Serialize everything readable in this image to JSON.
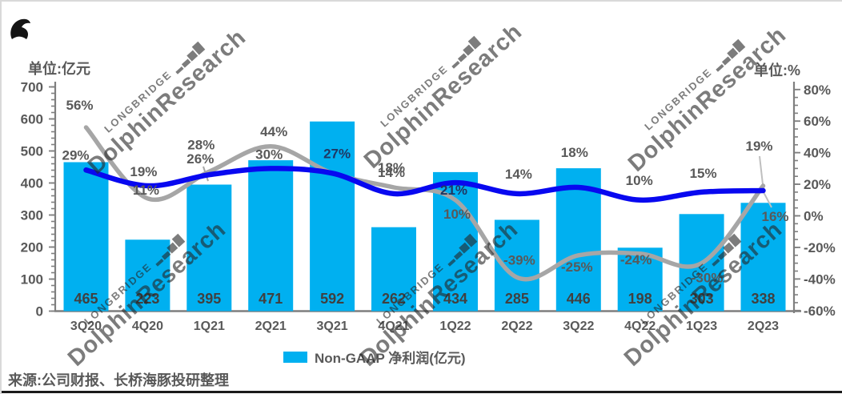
{
  "header": {
    "unit_left": "单位:亿元",
    "unit_right": "单位:%"
  },
  "footer": {
    "source": "来源:公司财报、长桥海豚投研整理"
  },
  "watermark": {
    "brand": "LONGBRIDGE",
    "chart_icon": "▂▃▅▇",
    "name": "DolphinResearch"
  },
  "colors": {
    "bar": "#00b0f0",
    "blue_line": "#0808f0",
    "gray_line": "#a6a6a6",
    "axis": "#7f7f7f",
    "tick_label": "#595959",
    "bar_value_label": "#404040",
    "on_bar_blue_label": "#1f3864"
  },
  "chart_data": {
    "type": "combo",
    "title": "",
    "categories": [
      "3Q20",
      "4Q20",
      "1Q21",
      "2Q21",
      "3Q21",
      "4Q21",
      "1Q22",
      "2Q22",
      "3Q22",
      "4Q22",
      "1Q23",
      "2Q23"
    ],
    "bar_series": {
      "name": "Non-GAAP 净利润(亿元)",
      "axis": "left",
      "unit": "亿元",
      "color": "#00b0f0",
      "values": [
        465,
        223,
        395,
        471,
        592,
        262,
        434,
        285,
        446,
        198,
        303,
        338
      ],
      "value_labels": [
        "465",
        "223",
        "395",
        "471",
        "592",
        "262",
        "434",
        "285",
        "446",
        "198",
        "303",
        "338"
      ]
    },
    "line_series": [
      {
        "id": "blue-line",
        "color": "#0808f0",
        "axis": "right",
        "unit": "%",
        "values": [
          29,
          19,
          26,
          30,
          27,
          14,
          21,
          14,
          18,
          10,
          15,
          16
        ],
        "labels": [
          "29%",
          "19%",
          "26%",
          "30%",
          "27%",
          "14%",
          "21%",
          "14%",
          "18%",
          "10%",
          "15%",
          "16%"
        ]
      },
      {
        "id": "gray-line",
        "color": "#a6a6a6",
        "axis": "right",
        "unit": "%",
        "values": [
          56,
          11,
          28,
          44,
          27,
          18,
          10,
          -39,
          -25,
          -24,
          -30,
          19
        ],
        "labels": [
          "56%",
          "11%",
          "28%",
          "44%",
          null,
          "18%",
          "10%",
          "-39%",
          "-25%",
          "-24%",
          "-30%",
          "19%"
        ]
      }
    ],
    "left_axis": {
      "title": "单位:亿元",
      "min": 0,
      "max": 700,
      "major_step": 100,
      "minor_step": 20,
      "tick_labels": [
        "700",
        "600",
        "500",
        "400",
        "300",
        "200",
        "100",
        "0"
      ]
    },
    "right_axis": {
      "title": "单位:%",
      "min": -60,
      "max": 80,
      "major_step": 20,
      "minor_step": 5,
      "tick_labels": [
        "80%",
        "60%",
        "40%",
        "20%",
        "0%",
        "-20%",
        "-40%",
        "-60%"
      ]
    },
    "legend": {
      "position": "bottom",
      "items": [
        {
          "label": "Non-GAAP 净利润(亿元)",
          "color": "#00b0f0"
        }
      ]
    },
    "grid": false
  }
}
